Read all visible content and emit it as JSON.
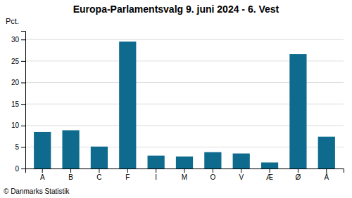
{
  "chart_data": {
    "type": "bar",
    "title": "Europa-Parlamentsvalg 9. juni 2024 - 6. Vest",
    "categories": [
      "A",
      "B",
      "C",
      "F",
      "I",
      "M",
      "O",
      "V",
      "Æ",
      "Ø",
      "Å"
    ],
    "values": [
      8.5,
      8.9,
      5.1,
      29.5,
      3.0,
      2.8,
      3.8,
      3.5,
      1.4,
      26.6,
      7.4
    ],
    "color": "#0e6b8e",
    "ylabel": "Pct.",
    "ylim": [
      0,
      32
    ],
    "yticks": [
      0,
      5,
      10,
      15,
      20,
      25,
      30
    ],
    "grid": true,
    "annotations": [
      "© Danmarks Statistik"
    ]
  }
}
